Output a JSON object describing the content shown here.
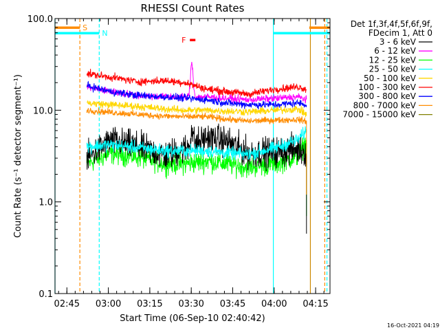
{
  "chart_data": {
    "type": "line",
    "title": "RHESSI Count Rates",
    "xlabel": "Start Time (06-Sep-10 02:40:42)",
    "ylabel": "Count Rate (s⁻¹ detector segment⁻¹)",
    "yscale": "log",
    "ylim": [
      0.1,
      100
    ],
    "xlim_minutes": [
      0,
      99.5
    ],
    "x_ticks": [
      {
        "label": "02:45",
        "t": 4.3
      },
      {
        "label": "03:00",
        "t": 19.3
      },
      {
        "label": "03:15",
        "t": 34.3
      },
      {
        "label": "03:30",
        "t": 49.3
      },
      {
        "label": "03:45",
        "t": 64.3
      },
      {
        "label": "04:00",
        "t": 79.3
      },
      {
        "label": "04:15",
        "t": 94.3
      }
    ],
    "y_ticks": [
      {
        "label": "100.0",
        "v": 100
      },
      {
        "label": "10.0",
        "v": 10
      },
      {
        "label": "1.0",
        "v": 1
      },
      {
        "label": "0.1",
        "v": 0.1
      }
    ],
    "legend_header": [
      "Det 1f,3f,4f,5f,6f,9f,",
      "FDecim 1, Att 0"
    ],
    "legend_position": "right",
    "time_range_minutes": [
      11.5,
      91
    ],
    "series": [
      {
        "name": "3 - 6 keV",
        "color": "#000000",
        "anchors": [
          [
            11.5,
            3.0
          ],
          [
            20,
            4.6
          ],
          [
            30,
            4.0
          ],
          [
            40,
            3.2
          ],
          [
            47,
            3.8
          ],
          [
            55,
            5.0
          ],
          [
            62,
            4.6
          ],
          [
            70,
            3.4
          ],
          [
            80,
            3.5
          ],
          [
            88,
            3.8
          ],
          [
            91,
            3.5
          ]
        ],
        "noise": 0.14,
        "peak": [
          49.5,
          1.5
        ]
      },
      {
        "name": "6 - 12 keV",
        "color": "#ff00ff",
        "anchors": [
          [
            11.5,
            18
          ],
          [
            20,
            16
          ],
          [
            30,
            14.5
          ],
          [
            40,
            14
          ],
          [
            47,
            14
          ],
          [
            55,
            14
          ],
          [
            62,
            13.5
          ],
          [
            70,
            13
          ],
          [
            80,
            13.5
          ],
          [
            88,
            14
          ],
          [
            91,
            13
          ]
        ],
        "noise": 0.035,
        "peak": [
          49.5,
          2.3
        ]
      },
      {
        "name": "12 - 25 keV",
        "color": "#00ff00",
        "anchors": [
          [
            11.5,
            2.6
          ],
          [
            20,
            3.4
          ],
          [
            30,
            3.1
          ],
          [
            40,
            2.6
          ],
          [
            47,
            2.6
          ],
          [
            55,
            2.8
          ],
          [
            62,
            2.6
          ],
          [
            70,
            2.4
          ],
          [
            80,
            2.6
          ],
          [
            88,
            3.2
          ],
          [
            91,
            4.5
          ]
        ],
        "noise": 0.1,
        "peak": null
      },
      {
        "name": "25 - 50 keV",
        "color": "#00ffff",
        "anchors": [
          [
            11.5,
            4.0
          ],
          [
            20,
            4.2
          ],
          [
            30,
            3.9
          ],
          [
            40,
            3.6
          ],
          [
            47,
            3.6
          ],
          [
            55,
            3.6
          ],
          [
            62,
            3.4
          ],
          [
            70,
            3.3
          ],
          [
            80,
            3.9
          ],
          [
            88,
            4.8
          ],
          [
            91,
            6.0
          ]
        ],
        "noise": 0.06,
        "peak": null
      },
      {
        "name": "50 - 100 keV",
        "color": "#ffd700",
        "anchors": [
          [
            11.5,
            12
          ],
          [
            20,
            11.5
          ],
          [
            30,
            11
          ],
          [
            40,
            10.3
          ],
          [
            47,
            10
          ],
          [
            55,
            10
          ],
          [
            62,
            9.8
          ],
          [
            70,
            9.6
          ],
          [
            80,
            10
          ],
          [
            88,
            10.3
          ],
          [
            91,
            9
          ]
        ],
        "noise": 0.035,
        "peak": null
      },
      {
        "name": "100 - 300 keV",
        "color": "#ff0000",
        "anchors": [
          [
            11.5,
            25
          ],
          [
            20,
            23
          ],
          [
            30,
            20.5
          ],
          [
            40,
            21
          ],
          [
            47,
            20
          ],
          [
            55,
            17
          ],
          [
            62,
            16
          ],
          [
            70,
            15
          ],
          [
            80,
            17
          ],
          [
            88,
            18
          ],
          [
            91,
            17
          ]
        ],
        "noise": 0.035,
        "peak": null
      },
      {
        "name": "300 - 800 keV",
        "color": "#0000ff",
        "anchors": [
          [
            11.5,
            18.5
          ],
          [
            20,
            16
          ],
          [
            30,
            14.5
          ],
          [
            40,
            14
          ],
          [
            47,
            13.5
          ],
          [
            55,
            13
          ],
          [
            62,
            12
          ],
          [
            70,
            11.5
          ],
          [
            80,
            11.5
          ],
          [
            88,
            12
          ],
          [
            91,
            11.5
          ]
        ],
        "noise": 0.035,
        "peak": null
      },
      {
        "name": "800 - 7000 keV",
        "color": "#ff8c00",
        "anchors": [
          [
            11.5,
            10
          ],
          [
            20,
            9.5
          ],
          [
            30,
            9
          ],
          [
            40,
            8.6
          ],
          [
            47,
            8.5
          ],
          [
            55,
            8.5
          ],
          [
            62,
            8
          ],
          [
            70,
            7.6
          ],
          [
            80,
            7.8
          ],
          [
            88,
            7.9
          ],
          [
            91,
            7.6
          ]
        ],
        "noise": 0.03,
        "peak": null
      },
      {
        "name": "7000 - 15000 keV",
        "color": "#808000",
        "anchors": [],
        "noise": 0,
        "peak": null
      }
    ],
    "bars": [
      {
        "label": "S",
        "color": "#ff8c00",
        "segments": [
          [
            0,
            9
          ]
        ]
      },
      {
        "label": "N",
        "color": "#00ffff",
        "segments": [
          [
            0,
            16
          ],
          [
            79,
            99.5
          ]
        ]
      },
      {
        "label": "F",
        "color": "#ff0000",
        "segments": [
          [
            48.8,
            50.8
          ]
        ]
      }
    ],
    "orange_bar_right": [
      92,
      99.5
    ],
    "vertical_markers": [
      {
        "t": 0,
        "color": "#00ffff",
        "style": "solid"
      },
      {
        "t": 9,
        "color": "#ff8c00",
        "style": "dashed"
      },
      {
        "t": 16,
        "color": "#00ffff",
        "style": "dashed"
      },
      {
        "t": 79,
        "color": "#00ffff",
        "style": "solid"
      },
      {
        "t": 92.4,
        "color": "#cc8800",
        "style": "solid"
      },
      {
        "t": 97.6,
        "color": "#ff8c00",
        "style": "dashed"
      },
      {
        "t": 98.4,
        "color": "#00ffff",
        "style": "dashed"
      }
    ],
    "timestamp": "16-Oct-2021 04:19"
  }
}
